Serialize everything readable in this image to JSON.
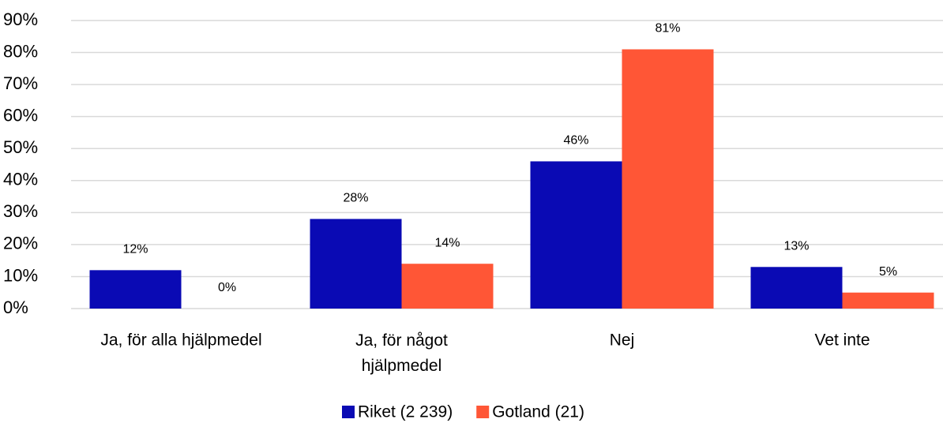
{
  "chart_data": {
    "type": "bar",
    "categories": [
      "Ja, för alla hjälpmedel",
      "Ja, för något hjälpmedel",
      "Nej",
      "Vet inte"
    ],
    "series": [
      {
        "name": "Riket (2 239)",
        "color": "#0a0ab4",
        "values": [
          12,
          28,
          46,
          13
        ],
        "value_labels": [
          "12%",
          "28%",
          "46%",
          "13%"
        ]
      },
      {
        "name": "Gotland (21)",
        "color": "#ff5636",
        "values": [
          0,
          14,
          81,
          5
        ],
        "value_labels": [
          "0%",
          "14%",
          "81%",
          "5%"
        ]
      }
    ],
    "ylim": [
      0,
      90
    ],
    "yticks": [
      {
        "value": 0,
        "label": "0%"
      },
      {
        "value": 10,
        "label": "10%"
      },
      {
        "value": 20,
        "label": "20%"
      },
      {
        "value": 30,
        "label": "30%"
      },
      {
        "value": 40,
        "label": "40%"
      },
      {
        "value": 50,
        "label": "50%"
      },
      {
        "value": 60,
        "label": "60%"
      },
      {
        "value": 70,
        "label": "70%"
      },
      {
        "value": 80,
        "label": "80%"
      },
      {
        "value": 90,
        "label": "90%"
      }
    ],
    "grid": true,
    "legend": "bottom"
  }
}
